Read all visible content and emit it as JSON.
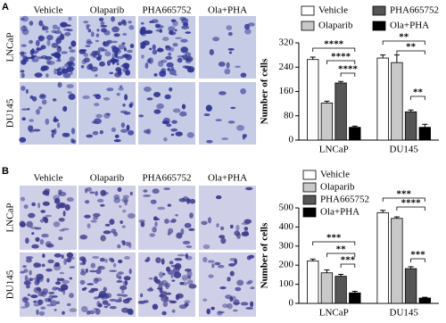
{
  "panels": [
    {
      "label": "A",
      "columns": [
        "Vehicle",
        "Olaparib",
        "PHA665752",
        "Ola+PHA"
      ],
      "rows": [
        "LNCaP",
        "DU145"
      ]
    },
    {
      "label": "B",
      "columns": [
        "Vehicle",
        "Olaparib",
        "PHA665752",
        "Ola+PHA"
      ],
      "rows": [
        "LNCaP",
        "DU145"
      ]
    }
  ],
  "chart_data": [
    {
      "type": "bar",
      "y_label": "Number of cells",
      "categories": [
        "LNCaP",
        "DU145"
      ],
      "ylim": [
        0,
        320
      ],
      "yticks": [
        0,
        80,
        160,
        240,
        320
      ],
      "series": [
        {
          "name": "Vehicle",
          "color": "#ffffff",
          "values": [
            265,
            270
          ],
          "errors": [
            8,
            10
          ]
        },
        {
          "name": "Olaparib",
          "color": "#c8c8c8",
          "values": [
            122,
            255
          ],
          "errors": [
            6,
            25
          ]
        },
        {
          "name": "PHA665752",
          "color": "#555555",
          "values": [
            188,
            93
          ],
          "errors": [
            5,
            6
          ]
        },
        {
          "name": "Ola+PHA",
          "color": "#000000",
          "values": [
            42,
            42
          ],
          "errors": [
            4,
            10
          ]
        }
      ],
      "annotations": [
        "****",
        "****",
        "****",
        "**",
        "**",
        "**"
      ]
    },
    {
      "type": "bar",
      "y_label": "Number of cells",
      "categories": [
        "LNCaP",
        "DU145"
      ],
      "ylim": [
        0,
        500
      ],
      "yticks": [
        0,
        100,
        200,
        300,
        400,
        500
      ],
      "series": [
        {
          "name": "Vehicle",
          "color": "#ffffff",
          "values": [
            222,
            475
          ],
          "errors": [
            10,
            12
          ]
        },
        {
          "name": "Olaparib",
          "color": "#c8c8c8",
          "values": [
            160,
            445
          ],
          "errors": [
            15,
            8
          ]
        },
        {
          "name": "PHA665752",
          "color": "#555555",
          "values": [
            142,
            182
          ],
          "errors": [
            10,
            10
          ]
        },
        {
          "name": "Ola+PHA",
          "color": "#000000",
          "values": [
            55,
            28
          ],
          "errors": [
            8,
            4
          ]
        }
      ],
      "annotations": [
        "***",
        "**",
        "***",
        "***",
        "****",
        "***"
      ]
    }
  ]
}
